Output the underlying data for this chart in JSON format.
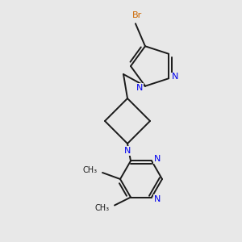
{
  "bg_color": "#e8e8e8",
  "bond_color": "#1a1a1a",
  "n_color": "#0000ee",
  "br_color": "#cc6600",
  "bond_width": 1.4,
  "figsize": [
    3.0,
    3.0
  ],
  "dpi": 100,
  "xlim": [
    0,
    300
  ],
  "ylim": [
    0,
    300
  ]
}
